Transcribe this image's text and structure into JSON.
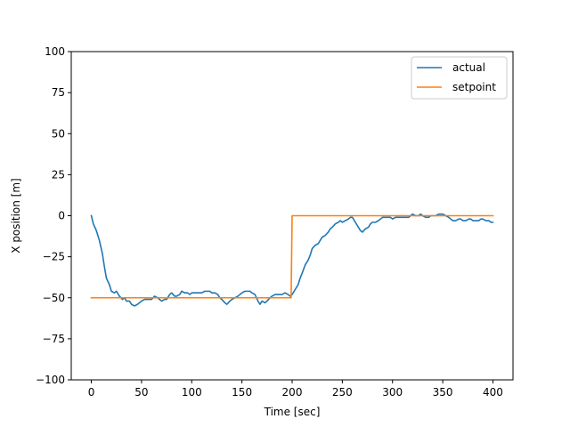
{
  "chart_data": {
    "type": "line",
    "xlabel": "Time [sec]",
    "ylabel": "X position [m]",
    "xlim": [
      -20,
      420
    ],
    "ylim": [
      -100,
      100
    ],
    "xticks": [
      0,
      50,
      100,
      150,
      200,
      250,
      300,
      350,
      400
    ],
    "yticks": [
      -100,
      -75,
      -50,
      -25,
      0,
      25,
      50,
      75,
      100
    ],
    "grid": false,
    "legend_position": "top-right",
    "series": [
      {
        "name": "actual",
        "color": "#1f77b4",
        "points": [
          [
            0,
            0
          ],
          [
            2,
            -5
          ],
          [
            5,
            -9
          ],
          [
            8,
            -15
          ],
          [
            11,
            -23
          ],
          [
            13,
            -31
          ],
          [
            15,
            -38
          ],
          [
            18,
            -42
          ],
          [
            20,
            -46
          ],
          [
            23,
            -47
          ],
          [
            25,
            -46
          ],
          [
            28,
            -49
          ],
          [
            31,
            -51
          ],
          [
            33,
            -50
          ],
          [
            35,
            -52
          ],
          [
            38,
            -52
          ],
          [
            40,
            -54
          ],
          [
            43,
            -55
          ],
          [
            46,
            -54
          ],
          [
            48,
            -53
          ],
          [
            50,
            -52
          ],
          [
            53,
            -51
          ],
          [
            56,
            -51
          ],
          [
            58,
            -51
          ],
          [
            60,
            -51
          ],
          [
            63,
            -49
          ],
          [
            66,
            -50
          ],
          [
            68,
            -51
          ],
          [
            70,
            -52
          ],
          [
            73,
            -51
          ],
          [
            75,
            -51
          ],
          [
            78,
            -48
          ],
          [
            80,
            -47
          ],
          [
            83,
            -49
          ],
          [
            85,
            -49
          ],
          [
            88,
            -48
          ],
          [
            90,
            -46
          ],
          [
            93,
            -47
          ],
          [
            96,
            -47
          ],
          [
            98,
            -48
          ],
          [
            100,
            -47
          ],
          [
            103,
            -47
          ],
          [
            106,
            -47
          ],
          [
            108,
            -47
          ],
          [
            110,
            -47
          ],
          [
            113,
            -46
          ],
          [
            116,
            -46
          ],
          [
            118,
            -46
          ],
          [
            120,
            -47
          ],
          [
            123,
            -47
          ],
          [
            126,
            -48
          ],
          [
            128,
            -50
          ],
          [
            130,
            -51
          ],
          [
            133,
            -53
          ],
          [
            135,
            -54
          ],
          [
            138,
            -52
          ],
          [
            140,
            -51
          ],
          [
            143,
            -50
          ],
          [
            146,
            -49
          ],
          [
            148,
            -48
          ],
          [
            150,
            -47
          ],
          [
            153,
            -46
          ],
          [
            156,
            -46
          ],
          [
            158,
            -46
          ],
          [
            160,
            -47
          ],
          [
            163,
            -48
          ],
          [
            166,
            -52
          ],
          [
            168,
            -54
          ],
          [
            170,
            -52
          ],
          [
            173,
            -53
          ],
          [
            175,
            -52
          ],
          [
            178,
            -50
          ],
          [
            180,
            -49
          ],
          [
            183,
            -48
          ],
          [
            186,
            -48
          ],
          [
            188,
            -48
          ],
          [
            190,
            -48
          ],
          [
            193,
            -47
          ],
          [
            196,
            -48
          ],
          [
            198,
            -49
          ],
          [
            200,
            -48
          ],
          [
            203,
            -45
          ],
          [
            206,
            -42
          ],
          [
            208,
            -38
          ],
          [
            210,
            -35
          ],
          [
            213,
            -30
          ],
          [
            216,
            -27
          ],
          [
            218,
            -24
          ],
          [
            220,
            -20
          ],
          [
            223,
            -18
          ],
          [
            226,
            -17
          ],
          [
            228,
            -15
          ],
          [
            230,
            -13
          ],
          [
            233,
            -12
          ],
          [
            236,
            -10
          ],
          [
            238,
            -8
          ],
          [
            240,
            -7
          ],
          [
            243,
            -5
          ],
          [
            246,
            -4
          ],
          [
            248,
            -3
          ],
          [
            250,
            -4
          ],
          [
            253,
            -3
          ],
          [
            256,
            -2
          ],
          [
            258,
            -1
          ],
          [
            260,
            -1
          ],
          [
            263,
            -4
          ],
          [
            266,
            -7
          ],
          [
            268,
            -9
          ],
          [
            270,
            -10
          ],
          [
            273,
            -8
          ],
          [
            276,
            -7
          ],
          [
            278,
            -5
          ],
          [
            280,
            -4
          ],
          [
            283,
            -4
          ],
          [
            286,
            -3
          ],
          [
            288,
            -2
          ],
          [
            290,
            -1
          ],
          [
            293,
            -1
          ],
          [
            296,
            -1
          ],
          [
            298,
            -1
          ],
          [
            300,
            -2
          ],
          [
            303,
            -1
          ],
          [
            306,
            -1
          ],
          [
            308,
            -1
          ],
          [
            310,
            -1
          ],
          [
            313,
            -1
          ],
          [
            316,
            -1
          ],
          [
            318,
            0
          ],
          [
            320,
            1
          ],
          [
            323,
            0
          ],
          [
            326,
            0
          ],
          [
            328,
            1
          ],
          [
            330,
            0
          ],
          [
            333,
            -1
          ],
          [
            336,
            -1
          ],
          [
            338,
            0
          ],
          [
            340,
            0
          ],
          [
            343,
            0
          ],
          [
            346,
            1
          ],
          [
            348,
            1
          ],
          [
            350,
            1
          ],
          [
            353,
            0
          ],
          [
            356,
            -1
          ],
          [
            358,
            -2
          ],
          [
            360,
            -3
          ],
          [
            363,
            -3
          ],
          [
            366,
            -2
          ],
          [
            368,
            -2
          ],
          [
            370,
            -3
          ],
          [
            373,
            -3
          ],
          [
            376,
            -2
          ],
          [
            378,
            -2
          ],
          [
            380,
            -3
          ],
          [
            383,
            -3
          ],
          [
            386,
            -3
          ],
          [
            388,
            -2
          ],
          [
            390,
            -2
          ],
          [
            393,
            -3
          ],
          [
            396,
            -3
          ],
          [
            398,
            -4
          ],
          [
            400,
            -4
          ]
        ]
      },
      {
        "name": "setpoint",
        "color": "#ff7f0e",
        "points": [
          [
            0,
            -50
          ],
          [
            199,
            -50
          ],
          [
            200,
            0
          ],
          [
            400,
            0
          ]
        ]
      }
    ]
  }
}
